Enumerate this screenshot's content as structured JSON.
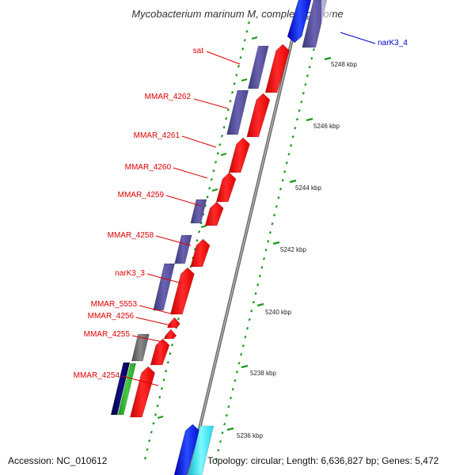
{
  "title": "Mycobacterium marinum M, complete genome",
  "genes": [
    {
      "name": "sat",
      "color": "#dd0000"
    },
    {
      "name": "MMAR_4262",
      "color": "#dd0000"
    },
    {
      "name": "MMAR_4261",
      "color": "#dd0000"
    },
    {
      "name": "MMAR_4260",
      "color": "#dd0000"
    },
    {
      "name": "MMAR_4259",
      "color": "#dd0000"
    },
    {
      "name": "MMAR_4258",
      "color": "#dd0000"
    },
    {
      "name": "narK3_3",
      "color": "#dd0000"
    },
    {
      "name": "MMAR_5553",
      "color": "#dd0000"
    },
    {
      "name": "MMAR_4256",
      "color": "#dd0000"
    },
    {
      "name": "MMAR_4255",
      "color": "#dd0000"
    },
    {
      "name": "MMAR_4254",
      "color": "#dd0000"
    },
    {
      "name": "narK3_4",
      "color": "#0000cc"
    }
  ],
  "scale": {
    "labels": [
      "5248 kbp",
      "5246 kbp",
      "5244 kbp",
      "5242 kbp",
      "5240 kbp",
      "5238 kbp",
      "5236 kbp"
    ]
  },
  "feature_colors": {
    "cds_forward": "#ff0000",
    "cds_reverse": "#4b4897",
    "cds_blue": "#1f3cff",
    "navy": "#00004a",
    "green": "#3fc93f",
    "grey": "#7a7a7a",
    "cyan": "#66f4ff",
    "gc_track": "#1a9a1a",
    "backbone": "#808080"
  },
  "footer": {
    "accession": "Accession: NC_010612",
    "topology": "Topology: circular; Length: 6,636,827 bp; Genes: 5,472"
  }
}
